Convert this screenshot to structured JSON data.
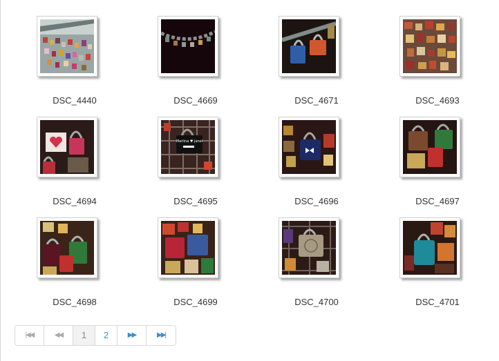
{
  "gallery": {
    "items": [
      {
        "caption": "DSC_4440",
        "scene": "bridge-locks-wide"
      },
      {
        "caption": "DSC_4669",
        "scene": "lock-chain"
      },
      {
        "caption": "DSC_4671",
        "scene": "blue-orange-locks"
      },
      {
        "caption": "DSC_4693",
        "scene": "locks-grid"
      },
      {
        "caption": "DSC_4694",
        "scene": "heart-lock"
      },
      {
        "caption": "DSC_4695",
        "scene": "black-lock-writing"
      },
      {
        "caption": "DSC_4696",
        "scene": "navy-lock-bow"
      },
      {
        "caption": "DSC_4697",
        "scene": "engraved-locks"
      },
      {
        "caption": "DSC_4698",
        "scene": "dark-red-locks"
      },
      {
        "caption": "DSC_4699",
        "scene": "colorful-engraved-locks"
      },
      {
        "caption": "DSC_4700",
        "scene": "ornate-silver-lock"
      },
      {
        "caption": "DSC_4701",
        "scene": "teal-lock"
      }
    ]
  },
  "pagination": {
    "first_icon": "first-page-icon",
    "prev_icon": "prev-page-icon",
    "pages": [
      "1",
      "2"
    ],
    "current_page": "1",
    "next_icon": "next-page-icon",
    "last_icon": "last-page-icon",
    "accent_color": "#3a8fcf"
  }
}
